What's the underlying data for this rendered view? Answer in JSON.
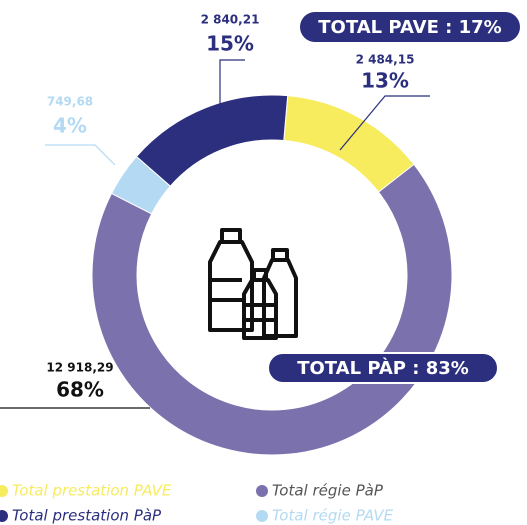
{
  "chart_data": {
    "type": "donut",
    "categories": [
      "Total prestation PAVE",
      "Total régie PàP",
      "Total régie PAVE",
      "Total prestation PàP"
    ],
    "values": [
      2484.15,
      12918.29,
      749.68,
      2840.21
    ],
    "value_labels": [
      "2 484,15",
      "12 918,29",
      "749,68",
      "2 840,21"
    ],
    "percent_labels": [
      "13%",
      "68%",
      "4%",
      "15%"
    ],
    "colors": [
      "#f7eb5e",
      "#7b72ad",
      "#b3daf2",
      "#2b2f7e"
    ],
    "annotations": [
      "TOTAL PAVE : 17%",
      "TOTAL PÀP : 83%"
    ]
  }
}
